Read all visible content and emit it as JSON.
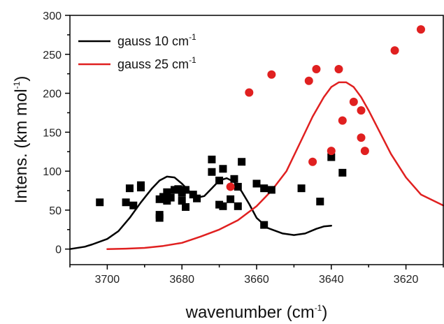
{
  "chart_data": {
    "type": "scatter",
    "xlabel": {
      "text": "wavenumber (cm",
      "sup": "-1",
      "tail": ")"
    },
    "ylabel": {
      "text": "Intens. (km mol",
      "sup": "-1",
      "tail": ")"
    },
    "xlim": [
      3710,
      3610
    ],
    "ylim": [
      -20,
      300
    ],
    "x_ticks": [
      3700,
      3680,
      3660,
      3640,
      3620
    ],
    "y_ticks": [
      0,
      50,
      100,
      150,
      200,
      250,
      300
    ],
    "legend": {
      "placement": "top-left",
      "entries": [
        {
          "text": "gauss 10 cm",
          "sup": "-1",
          "color": "#000000"
        },
        {
          "text": "gauss 25 cm",
          "sup": "-1",
          "color": "#e02020"
        }
      ]
    },
    "series": [
      {
        "kind": "line",
        "color": "#000000",
        "points": [
          [
            3710,
            0
          ],
          [
            3706,
            3
          ],
          [
            3704,
            6
          ],
          [
            3700,
            13
          ],
          [
            3697,
            23
          ],
          [
            3694,
            40
          ],
          [
            3691,
            60
          ],
          [
            3688,
            78
          ],
          [
            3686,
            88
          ],
          [
            3684,
            93
          ],
          [
            3682,
            92
          ],
          [
            3680,
            84
          ],
          [
            3678,
            74
          ],
          [
            3676,
            66
          ],
          [
            3674,
            68
          ],
          [
            3672,
            78
          ],
          [
            3670,
            88
          ],
          [
            3668,
            91
          ],
          [
            3666,
            86
          ],
          [
            3664,
            74
          ],
          [
            3662,
            58
          ],
          [
            3660,
            40
          ],
          [
            3657,
            27
          ],
          [
            3653,
            20
          ],
          [
            3650,
            18
          ],
          [
            3647,
            20
          ],
          [
            3644,
            26
          ],
          [
            3642,
            29
          ],
          [
            3640,
            30
          ]
        ]
      },
      {
        "kind": "line",
        "color": "#e02020",
        "points": [
          [
            3700,
            0
          ],
          [
            3695,
            0.5
          ],
          [
            3690,
            1.5
          ],
          [
            3685,
            4
          ],
          [
            3680,
            8
          ],
          [
            3675,
            16
          ],
          [
            3670,
            25
          ],
          [
            3665,
            37
          ],
          [
            3660,
            55
          ],
          [
            3656,
            75
          ],
          [
            3652,
            100
          ],
          [
            3648,
            140
          ],
          [
            3645,
            170
          ],
          [
            3642,
            195
          ],
          [
            3640,
            208
          ],
          [
            3638,
            214
          ],
          [
            3636,
            214
          ],
          [
            3634,
            208
          ],
          [
            3632,
            195
          ],
          [
            3630,
            178
          ],
          [
            3627,
            150
          ],
          [
            3624,
            122
          ],
          [
            3620,
            92
          ],
          [
            3616,
            70
          ],
          [
            3610,
            56
          ]
        ]
      },
      {
        "kind": "scatter",
        "marker": "square",
        "color": "#000000",
        "points": [
          [
            3702,
            60
          ],
          [
            3695,
            60
          ],
          [
            3694,
            78
          ],
          [
            3693,
            56
          ],
          [
            3691,
            82
          ],
          [
            3691,
            79
          ],
          [
            3686,
            40
          ],
          [
            3686,
            44
          ],
          [
            3686,
            64
          ],
          [
            3685,
            67
          ],
          [
            3684,
            73
          ],
          [
            3684,
            62
          ],
          [
            3683,
            66
          ],
          [
            3682,
            76
          ],
          [
            3681,
            77
          ],
          [
            3680,
            72
          ],
          [
            3680,
            62
          ],
          [
            3679,
            54
          ],
          [
            3679,
            76
          ],
          [
            3677,
            70
          ],
          [
            3676,
            65
          ],
          [
            3672,
            115
          ],
          [
            3672,
            99
          ],
          [
            3670,
            88
          ],
          [
            3670,
            57
          ],
          [
            3669,
            55
          ],
          [
            3669,
            103
          ],
          [
            3667,
            64
          ],
          [
            3666,
            90
          ],
          [
            3665,
            80
          ],
          [
            3665,
            55
          ],
          [
            3664,
            112
          ],
          [
            3660,
            84
          ],
          [
            3658,
            31
          ],
          [
            3658,
            78
          ],
          [
            3656,
            76
          ],
          [
            3648,
            78
          ],
          [
            3643,
            61
          ],
          [
            3640,
            118
          ],
          [
            3637,
            98
          ]
        ]
      },
      {
        "kind": "scatter",
        "marker": "circle",
        "color": "#e02020",
        "points": [
          [
            3667,
            80
          ],
          [
            3662,
            201
          ],
          [
            3656,
            224
          ],
          [
            3646,
            216
          ],
          [
            3644,
            231
          ],
          [
            3645,
            112
          ],
          [
            3640,
            126
          ],
          [
            3638,
            231
          ],
          [
            3637,
            165
          ],
          [
            3634,
            189
          ],
          [
            3632,
            178
          ],
          [
            3632,
            143
          ],
          [
            3631,
            126
          ],
          [
            3623,
            255
          ],
          [
            3616,
            282
          ]
        ]
      }
    ]
  }
}
